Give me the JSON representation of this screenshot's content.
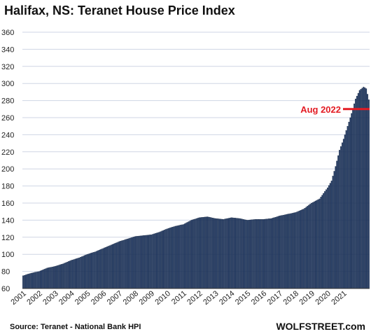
{
  "chart_data": {
    "type": "bar",
    "title": "Halifax, NS: Teranet House Price Index",
    "xlabel": "",
    "ylabel": "",
    "ylim": [
      60,
      360
    ],
    "yticks": [
      60,
      80,
      100,
      120,
      140,
      160,
      180,
      200,
      220,
      240,
      260,
      280,
      300,
      320,
      340,
      360
    ],
    "xticks": [
      "2001",
      "2002",
      "2003",
      "2004",
      "2005",
      "2006",
      "2007",
      "2008",
      "2009",
      "2010",
      "2011",
      "2012",
      "2013",
      "2014",
      "2015",
      "2016",
      "2017",
      "2018",
      "2019",
      "2020",
      "2021"
    ],
    "grid": true,
    "bar_color": "#1f3864",
    "annotation": {
      "label": "Aug 2022",
      "value": 270,
      "color": "#e31b23"
    },
    "series": [
      {
        "keypoints": [
          [
            "2001-01",
            75
          ],
          [
            "2001-07",
            78
          ],
          [
            "2002-01",
            80
          ],
          [
            "2002-07",
            84
          ],
          [
            "2003-01",
            86
          ],
          [
            "2003-07",
            89
          ],
          [
            "2004-01",
            93
          ],
          [
            "2004-07",
            96
          ],
          [
            "2005-01",
            100
          ],
          [
            "2005-07",
            103
          ],
          [
            "2006-01",
            107
          ],
          [
            "2006-07",
            111
          ],
          [
            "2007-01",
            115
          ],
          [
            "2007-07",
            118
          ],
          [
            "2008-01",
            121
          ],
          [
            "2008-07",
            122
          ],
          [
            "2009-01",
            123
          ],
          [
            "2009-07",
            126
          ],
          [
            "2010-01",
            130
          ],
          [
            "2010-07",
            133
          ],
          [
            "2011-01",
            135
          ],
          [
            "2011-07",
            140
          ],
          [
            "2012-01",
            143
          ],
          [
            "2012-07",
            144
          ],
          [
            "2013-01",
            142
          ],
          [
            "2013-07",
            141
          ],
          [
            "2014-01",
            143
          ],
          [
            "2014-07",
            142
          ],
          [
            "2015-01",
            140
          ],
          [
            "2015-07",
            141
          ],
          [
            "2016-01",
            141
          ],
          [
            "2016-07",
            142
          ],
          [
            "2017-01",
            145
          ],
          [
            "2017-07",
            147
          ],
          [
            "2018-01",
            149
          ],
          [
            "2018-07",
            153
          ],
          [
            "2019-01",
            160
          ],
          [
            "2019-07",
            165
          ],
          [
            "2020-01",
            178
          ],
          [
            "2020-04",
            186
          ],
          [
            "2020-07",
            203
          ],
          [
            "2020-10",
            222
          ],
          [
            "2021-01",
            235
          ],
          [
            "2021-04",
            250
          ],
          [
            "2021-07",
            265
          ],
          [
            "2021-10",
            282
          ],
          [
            "2022-01",
            292
          ],
          [
            "2022-04",
            296
          ],
          [
            "2022-06",
            294
          ],
          [
            "2022-08",
            281
          ]
        ]
      }
    ]
  },
  "source": "Source: Teranet - National Bank HPI",
  "brand": "WOLFSTREET.com"
}
